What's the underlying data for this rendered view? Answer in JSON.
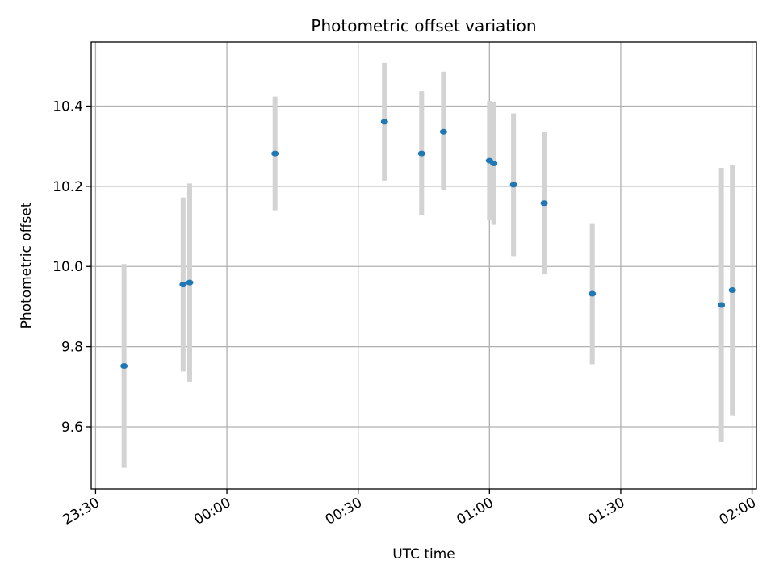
{
  "chart_data": {
    "type": "scatter",
    "title": "Photometric offset variation",
    "xlabel": "UTC time",
    "ylabel": "Photometric offset",
    "xlim": [
      "23:29",
      "02:01"
    ],
    "ylim": [
      9.445,
      10.56
    ],
    "grid": true,
    "x_ticks": [
      "23:30",
      "00:00",
      "00:30",
      "01:00",
      "01:30",
      "02:00"
    ],
    "y_ticks": [
      "9.6",
      "9.8",
      "10.0",
      "10.2",
      "10.4"
    ],
    "series": [
      {
        "points": [
          {
            "x": "23:36:30",
            "y": 9.752,
            "err_low": 9.498,
            "err_high": 10.006
          },
          {
            "x": "23:50:00",
            "y": 9.955,
            "err_low": 9.738,
            "err_high": 10.172
          },
          {
            "x": "23:51:30",
            "y": 9.96,
            "err_low": 9.713,
            "err_high": 10.207
          },
          {
            "x": "00:11:00",
            "y": 10.282,
            "err_low": 10.14,
            "err_high": 10.424
          },
          {
            "x": "00:36:00",
            "y": 10.361,
            "err_low": 10.214,
            "err_high": 10.508
          },
          {
            "x": "00:44:30",
            "y": 10.282,
            "err_low": 10.127,
            "err_high": 10.437
          },
          {
            "x": "00:49:30",
            "y": 10.336,
            "err_low": 10.19,
            "err_high": 10.486
          },
          {
            "x": "01:00:00",
            "y": 10.264,
            "err_low": 10.115,
            "err_high": 10.413
          },
          {
            "x": "01:01:00",
            "y": 10.257,
            "err_low": 10.104,
            "err_high": 10.41
          },
          {
            "x": "01:05:30",
            "y": 10.204,
            "err_low": 10.026,
            "err_high": 10.382
          },
          {
            "x": "01:12:30",
            "y": 10.158,
            "err_low": 9.98,
            "err_high": 10.336
          },
          {
            "x": "01:23:30",
            "y": 9.932,
            "err_low": 9.756,
            "err_high": 10.108
          },
          {
            "x": "01:53:00",
            "y": 9.904,
            "err_low": 9.562,
            "err_high": 10.246
          },
          {
            "x": "01:55:30",
            "y": 9.941,
            "err_low": 9.629,
            "err_high": 10.253
          }
        ]
      }
    ],
    "colors": {
      "point": "#1f77b4",
      "errorbar": "#d3d3d3",
      "grid": "#b0b0b0",
      "axes": "#000000"
    }
  }
}
